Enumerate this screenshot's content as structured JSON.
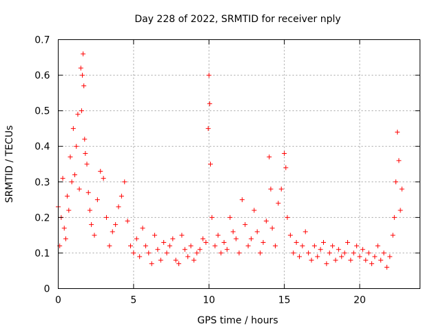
{
  "chart_data": {
    "type": "scatter",
    "title": "Day 228 of 2022, SRMTID for receiver nply",
    "xlabel": "GPS time / hours",
    "ylabel": "SRMTID / TECUs",
    "xlim": [
      0,
      24
    ],
    "ylim": [
      0,
      0.7
    ],
    "x_ticks": [
      0,
      5,
      10,
      15,
      20
    ],
    "x_tick_labels": [
      "0",
      "5",
      "10",
      "15",
      "20"
    ],
    "y_ticks": [
      0,
      0.1,
      0.2,
      0.3,
      0.4,
      0.5,
      0.6,
      0.7
    ],
    "y_tick_labels": [
      "0",
      "0.1",
      "0.2",
      "0.3",
      "0.4",
      "0.5",
      "0.6",
      "0.7"
    ],
    "grid": true,
    "marker": "plus",
    "series": [
      {
        "name": "SRMTID",
        "color": "#ff0000",
        "x": [
          0.0,
          0.1,
          0.2,
          0.3,
          0.4,
          0.5,
          0.6,
          0.7,
          0.8,
          0.9,
          1.0,
          1.1,
          1.2,
          1.3,
          1.4,
          1.5,
          1.55,
          1.6,
          1.65,
          1.7,
          1.75,
          1.8,
          1.9,
          2.0,
          2.1,
          2.2,
          2.4,
          2.6,
          2.8,
          3.0,
          3.2,
          3.4,
          3.6,
          3.8,
          4.0,
          4.2,
          4.4,
          4.6,
          4.8,
          5.0,
          5.2,
          5.4,
          5.6,
          5.8,
          6.0,
          6.2,
          6.4,
          6.6,
          6.8,
          7.0,
          7.2,
          7.4,
          7.6,
          7.8,
          8.0,
          8.2,
          8.4,
          8.6,
          8.8,
          9.0,
          9.2,
          9.4,
          9.6,
          9.8,
          9.95,
          10.0,
          10.05,
          10.1,
          10.2,
          10.4,
          10.6,
          10.8,
          11.0,
          11.2,
          11.4,
          11.6,
          11.8,
          12.0,
          12.2,
          12.4,
          12.6,
          12.8,
          13.0,
          13.2,
          13.4,
          13.6,
          13.8,
          14.0,
          14.1,
          14.2,
          14.4,
          14.6,
          14.8,
          15.0,
          15.1,
          15.2,
          15.4,
          15.6,
          15.8,
          16.0,
          16.2,
          16.4,
          16.6,
          16.8,
          17.0,
          17.2,
          17.4,
          17.6,
          17.8,
          18.0,
          18.2,
          18.4,
          18.6,
          18.8,
          19.0,
          19.2,
          19.4,
          19.6,
          19.8,
          20.0,
          20.2,
          20.4,
          20.6,
          20.8,
          21.0,
          21.2,
          21.4,
          21.6,
          21.8,
          22.0,
          22.2,
          22.3,
          22.4,
          22.5,
          22.6,
          22.7,
          22.8
        ],
        "y": [
          0.23,
          0.12,
          0.2,
          0.31,
          0.17,
          0.14,
          0.26,
          0.22,
          0.37,
          0.3,
          0.45,
          0.32,
          0.4,
          0.49,
          0.28,
          0.62,
          0.5,
          0.6,
          0.66,
          0.57,
          0.42,
          0.38,
          0.35,
          0.27,
          0.22,
          0.18,
          0.15,
          0.25,
          0.33,
          0.31,
          0.2,
          0.12,
          0.16,
          0.18,
          0.23,
          0.26,
          0.3,
          0.19,
          0.12,
          0.1,
          0.14,
          0.09,
          0.17,
          0.12,
          0.1,
          0.07,
          0.15,
          0.11,
          0.08,
          0.13,
          0.1,
          0.12,
          0.14,
          0.08,
          0.07,
          0.15,
          0.11,
          0.09,
          0.12,
          0.08,
          0.1,
          0.11,
          0.14,
          0.13,
          0.45,
          0.6,
          0.52,
          0.35,
          0.2,
          0.12,
          0.15,
          0.1,
          0.13,
          0.11,
          0.2,
          0.16,
          0.14,
          0.1,
          0.25,
          0.18,
          0.12,
          0.14,
          0.22,
          0.16,
          0.1,
          0.13,
          0.19,
          0.37,
          0.28,
          0.17,
          0.12,
          0.24,
          0.28,
          0.38,
          0.34,
          0.2,
          0.15,
          0.1,
          0.13,
          0.09,
          0.12,
          0.16,
          0.1,
          0.08,
          0.12,
          0.09,
          0.11,
          0.13,
          0.07,
          0.1,
          0.12,
          0.08,
          0.11,
          0.09,
          0.1,
          0.13,
          0.08,
          0.1,
          0.12,
          0.09,
          0.11,
          0.08,
          0.1,
          0.07,
          0.09,
          0.12,
          0.08,
          0.1,
          0.06,
          0.09,
          0.15,
          0.2,
          0.3,
          0.44,
          0.36,
          0.22,
          0.28
        ]
      }
    ]
  }
}
